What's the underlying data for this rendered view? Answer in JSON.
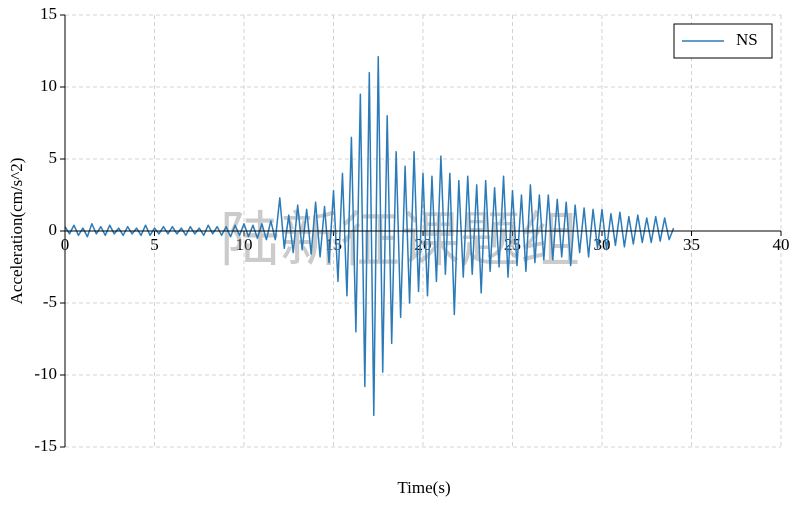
{
  "chart_data": {
    "type": "line",
    "xlabel": "Time(s)",
    "ylabel": "Acceleration(cm/s^2)",
    "watermark": "陆新征课题组",
    "xlim": [
      0,
      40
    ],
    "xticks": [
      0,
      5,
      10,
      15,
      20,
      25,
      30,
      35,
      40
    ],
    "ylim": [
      -15,
      15
    ],
    "yticks": [
      -15,
      -10,
      -5,
      0,
      5,
      10,
      15
    ],
    "grid": true,
    "legend": "upper right",
    "x": [
      0,
      0.25,
      0.5,
      0.75,
      1,
      1.25,
      1.5,
      1.75,
      2,
      2.25,
      2.5,
      2.75,
      3,
      3.25,
      3.5,
      3.75,
      4,
      4.25,
      4.5,
      4.75,
      5,
      5.25,
      5.5,
      5.75,
      6,
      6.25,
      6.5,
      6.75,
      7,
      7.25,
      7.5,
      7.75,
      8,
      8.25,
      8.5,
      8.75,
      9,
      9.25,
      9.5,
      9.75,
      10,
      10.25,
      10.5,
      10.75,
      11,
      11.25,
      11.5,
      11.75,
      12,
      12.25,
      12.5,
      12.75,
      13,
      13.25,
      13.5,
      13.75,
      14,
      14.25,
      14.5,
      14.75,
      15,
      15.25,
      15.5,
      15.75,
      16,
      16.25,
      16.5,
      16.75,
      17,
      17.25,
      17.5,
      17.75,
      18,
      18.25,
      18.5,
      18.75,
      19,
      19.25,
      19.5,
      19.75,
      20,
      20.25,
      20.5,
      20.75,
      21,
      21.25,
      21.5,
      21.75,
      22,
      22.25,
      22.5,
      22.75,
      23,
      23.25,
      23.5,
      23.75,
      24,
      24.25,
      24.5,
      24.75,
      25,
      25.25,
      25.5,
      25.75,
      26,
      26.25,
      26.5,
      26.75,
      27,
      27.25,
      27.5,
      27.75,
      28,
      28.25,
      28.5,
      28.75,
      29,
      29.25,
      29.5,
      29.75,
      30,
      30.25,
      30.5,
      30.75,
      31,
      31.25,
      31.5,
      31.75,
      32,
      32.25,
      32.5,
      32.75,
      33,
      33.25,
      33.5,
      33.75,
      34
    ],
    "series": [
      {
        "name": "NS",
        "color": "#2b7bb9",
        "values": [
          0.3,
          -0.2,
          0.4,
          -0.3,
          0.2,
          -0.4,
          0.5,
          -0.2,
          0.3,
          -0.3,
          0.4,
          -0.2,
          0.2,
          -0.3,
          0.3,
          -0.2,
          0.2,
          -0.3,
          0.4,
          -0.3,
          0.2,
          -0.2,
          0.3,
          -0.2,
          0.3,
          -0.2,
          0.2,
          -0.3,
          0.3,
          -0.2,
          0.2,
          -0.3,
          0.4,
          -0.2,
          0.3,
          -0.3,
          0.3,
          -0.4,
          0.4,
          -0.3,
          0.5,
          -0.4,
          0.4,
          -0.5,
          0.5,
          -0.6,
          0.7,
          -0.6,
          2.3,
          -1.2,
          1.1,
          -1.5,
          1.8,
          -1.3,
          1.5,
          -1.6,
          2.0,
          -1.8,
          1.7,
          -2.2,
          2.8,
          -3.5,
          4.0,
          -4.5,
          6.5,
          -7.0,
          9.5,
          -10.8,
          11.0,
          -12.8,
          12.1,
          -9.8,
          8.0,
          -7.8,
          5.5,
          -6.0,
          4.5,
          -5.0,
          5.5,
          -4.2,
          4.0,
          -4.5,
          3.8,
          -3.5,
          5.2,
          -3.0,
          4.0,
          -5.8,
          3.5,
          -3.2,
          3.8,
          -3.0,
          3.2,
          -4.3,
          3.5,
          -2.8,
          3.0,
          -2.5,
          3.8,
          -3.2,
          2.8,
          -2.4,
          2.5,
          -2.8,
          3.2,
          -2.2,
          2.5,
          -2.0,
          2.5,
          -2.0,
          2.2,
          -1.8,
          2.0,
          -2.4,
          1.8,
          -1.5,
          1.6,
          -1.8,
          1.5,
          -1.2,
          1.5,
          -1.3,
          1.2,
          -1.0,
          1.3,
          -1.1,
          1.0,
          -0.9,
          1.1,
          -0.8,
          0.9,
          -0.8,
          1.0,
          -0.7,
          0.9,
          -0.6,
          0.2
        ]
      }
    ]
  }
}
